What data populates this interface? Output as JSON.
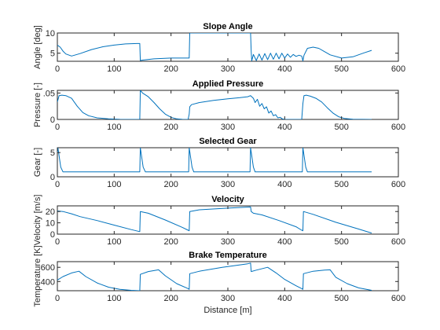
{
  "chart_data": [
    {
      "type": "line",
      "title": "Slope Angle",
      "xlabel": "",
      "ylabel": "Angle [deg]",
      "xlim": [
        0,
        600
      ],
      "ylim": [
        3,
        10
      ],
      "xticks": [
        0,
        100,
        200,
        300,
        400,
        500,
        600
      ],
      "yticks": [
        5,
        10
      ],
      "color": "#0072BD",
      "x": [
        0,
        5,
        10,
        15,
        25,
        40,
        60,
        80,
        100,
        120,
        140,
        145,
        146,
        150,
        170,
        200,
        230,
        232,
        233,
        250,
        300,
        340,
        341,
        342,
        345,
        350,
        355,
        360,
        365,
        370,
        375,
        380,
        385,
        390,
        395,
        400,
        405,
        410,
        415,
        420,
        425,
        430,
        432,
        434,
        440,
        450,
        460,
        470,
        480,
        500,
        520,
        540,
        553
      ],
      "y": [
        7,
        6.5,
        5.5,
        4.8,
        4.3,
        4.9,
        5.9,
        6.6,
        7,
        7.3,
        7.4,
        7.4,
        3.2,
        3.3,
        3.6,
        3.8,
        3.8,
        3.8,
        10,
        10,
        10,
        10,
        5.5,
        3.1,
        4.7,
        3.2,
        4.8,
        3.3,
        4.9,
        3.4,
        5,
        3.5,
        5,
        3.6,
        5,
        3.8,
        4.8,
        4,
        4.7,
        4.2,
        4.5,
        4.3,
        3.1,
        4.5,
        6.2,
        6.5,
        6.2,
        5.4,
        4.6,
        3.8,
        4.1,
        5.1,
        5.7
      ]
    },
    {
      "type": "line",
      "title": "Applied Pressure",
      "xlabel": "",
      "ylabel": "Pressure [-]",
      "xlim": [
        0,
        600
      ],
      "ylim": [
        0,
        0.055
      ],
      "xticks": [
        0,
        100,
        200,
        300,
        400,
        500,
        600
      ],
      "yticks": [
        0,
        0.05
      ],
      "color": "#0072BD",
      "x": [
        0,
        3,
        8,
        15,
        25,
        35,
        45,
        55,
        70,
        90,
        110,
        140,
        145,
        146,
        150,
        160,
        170,
        180,
        190,
        200,
        210,
        220,
        230,
        232,
        233,
        236,
        250,
        275,
        300,
        320,
        335,
        340,
        345,
        348,
        352,
        356,
        360,
        364,
        368,
        372,
        376,
        380,
        384,
        388,
        392,
        396,
        400,
        430,
        432,
        434,
        438,
        445,
        455,
        465,
        475,
        485,
        495,
        505,
        520,
        553
      ],
      "y": [
        0.033,
        0.045,
        0.046,
        0.045,
        0.04,
        0.025,
        0.013,
        0.007,
        0.003,
        0.001,
        0.0002,
        0,
        0,
        0.055,
        0.05,
        0.043,
        0.032,
        0.02,
        0.01,
        0.004,
        0.001,
        0.0002,
        0,
        0.01,
        0.024,
        0.028,
        0.032,
        0.036,
        0.039,
        0.041,
        0.043,
        0.045,
        0.04,
        0.032,
        0.038,
        0.025,
        0.03,
        0.02,
        0.024,
        0.012,
        0.016,
        0.007,
        0.009,
        0.003,
        0.004,
        0.001,
        0,
        0,
        0.03,
        0.045,
        0.046,
        0.044,
        0.04,
        0.033,
        0.022,
        0.012,
        0.005,
        0.002,
        0.0003,
        0
      ]
    },
    {
      "type": "line",
      "title": "Selected Gear",
      "xlabel": "",
      "ylabel": "Gear [-]",
      "xlim": [
        0,
        600
      ],
      "ylim": [
        0,
        6
      ],
      "xticks": [
        0,
        100,
        200,
        300,
        400,
        500,
        600
      ],
      "yticks": [
        0,
        5
      ],
      "color": "#0072BD",
      "x": [
        0,
        1,
        6,
        10,
        140,
        145,
        146,
        151,
        155,
        228,
        231,
        232,
        237,
        240,
        335,
        339,
        340,
        345,
        348,
        427,
        431,
        432,
        437,
        440,
        553
      ],
      "y": [
        5,
        6,
        2,
        1,
        1,
        1,
        6,
        2,
        1,
        1,
        1,
        6,
        2,
        1,
        1,
        1,
        6,
        2,
        1,
        1,
        1,
        6,
        2,
        1,
        1
      ]
    },
    {
      "type": "line",
      "title": "Velocity",
      "xlabel": "",
      "ylabel": "Velocity [m/s]",
      "xlim": [
        0,
        600
      ],
      "ylim": [
        0,
        25
      ],
      "xticks": [
        0,
        100,
        200,
        300,
        400,
        500,
        600
      ],
      "yticks": [
        0,
        10,
        20
      ],
      "color": "#0072BD",
      "x": [
        0,
        10,
        25,
        40,
        70,
        100,
        130,
        145,
        146,
        160,
        190,
        220,
        230,
        232,
        233,
        250,
        300,
        340,
        341,
        345,
        360,
        390,
        420,
        430,
        432,
        433,
        450,
        490,
        530,
        553
      ],
      "y": [
        20.5,
        20,
        18,
        15.5,
        12,
        8,
        4,
        2.2,
        20,
        18.5,
        12.5,
        6,
        3.5,
        3,
        20,
        21.5,
        23,
        24,
        20,
        18.5,
        17,
        12,
        6.5,
        3.5,
        3,
        20,
        17.5,
        10.5,
        4.5,
        1
      ]
    },
    {
      "type": "line",
      "title": "Brake Temperature",
      "xlabel": "Distance [m]",
      "ylabel": "Temperature [K]",
      "xlim": [
        0,
        600
      ],
      "ylim": [
        270,
        680
      ],
      "xticks": [
        0,
        100,
        200,
        300,
        400,
        500,
        600
      ],
      "yticks": [
        400,
        600
      ],
      "color": "#0072BD",
      "x": [
        0,
        10,
        25,
        38,
        50,
        70,
        90,
        110,
        130,
        145,
        146,
        160,
        178,
        190,
        210,
        230,
        232,
        233,
        250,
        290,
        335,
        340,
        341,
        350,
        370,
        385,
        400,
        420,
        430,
        432,
        433,
        450,
        470,
        480,
        490,
        510,
        530,
        553
      ],
      "y": [
        420,
        470,
        520,
        545,
        470,
        380,
        320,
        290,
        275,
        270,
        500,
        540,
        565,
        480,
        370,
        300,
        290,
        510,
        545,
        600,
        650,
        660,
        540,
        560,
        600,
        520,
        430,
        340,
        300,
        290,
        510,
        545,
        560,
        565,
        460,
        370,
        310,
        275
      ]
    }
  ]
}
